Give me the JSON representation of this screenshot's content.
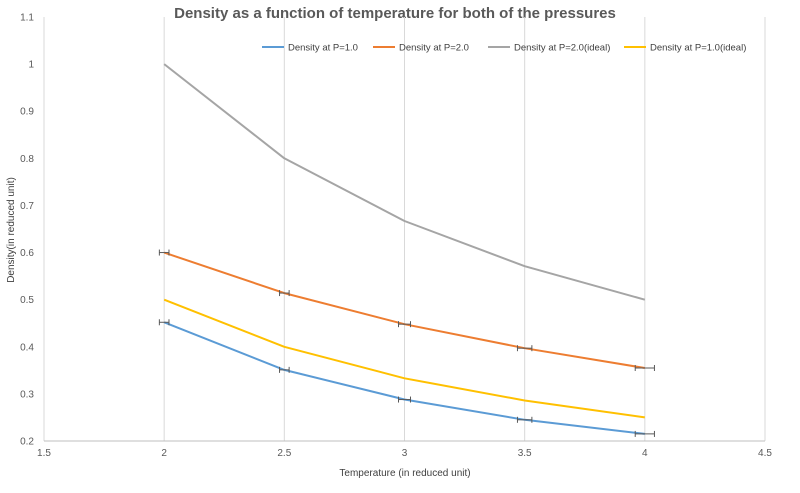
{
  "chart_data": {
    "type": "line",
    "title": "Density as a function of temperature for both of the pressures",
    "xlabel": "Temperature (in reduced unit)",
    "ylabel": "Density(in reduced unit)",
    "xlim": [
      1.5,
      4.5
    ],
    "ylim": [
      0.2,
      1.1
    ],
    "x_ticks": [
      "1.5",
      "2",
      "2.5",
      "3",
      "3.5",
      "4",
      "4.5"
    ],
    "y_ticks": [
      "0.2",
      "0.3",
      "0.4",
      "0.5",
      "0.6",
      "0.7",
      "0.8",
      "0.9",
      "1",
      "1.1"
    ],
    "x_tick_values": [
      1.5,
      2,
      2.5,
      3,
      3.5,
      4,
      4.5
    ],
    "y_tick_values": [
      0.2,
      0.3,
      0.4,
      0.5,
      0.6,
      0.7,
      0.8,
      0.9,
      1.0,
      1.1
    ],
    "grid": "vertical",
    "legend_position": "top",
    "series": [
      {
        "name": "Density at P=1.0",
        "color": "#5b9bd5",
        "x": [
          2,
          2.5,
          3,
          3.5,
          4
        ],
        "y": [
          0.452,
          0.351,
          0.288,
          0.245,
          0.215
        ],
        "x_err": [
          0.02,
          0.02,
          0.025,
          0.03,
          0.04
        ]
      },
      {
        "name": "Density at P=2.0",
        "color": "#ed7d31",
        "x": [
          2,
          2.5,
          3,
          3.5,
          4
        ],
        "y": [
          0.6,
          0.514,
          0.448,
          0.397,
          0.355
        ],
        "x_err": [
          0.02,
          0.02,
          0.025,
          0.03,
          0.04
        ]
      },
      {
        "name": "Density at P=2.0(ideal)",
        "color": "#a5a5a5",
        "x": [
          2,
          2.5,
          3,
          3.5,
          4
        ],
        "y": [
          1.0,
          0.8,
          0.667,
          0.571,
          0.5
        ]
      },
      {
        "name": "Density at P=1.0(ideal)",
        "color": "#ffc000",
        "x": [
          2,
          2.5,
          3,
          3.5,
          4
        ],
        "y": [
          0.5,
          0.4,
          0.333,
          0.286,
          0.25
        ]
      }
    ]
  }
}
